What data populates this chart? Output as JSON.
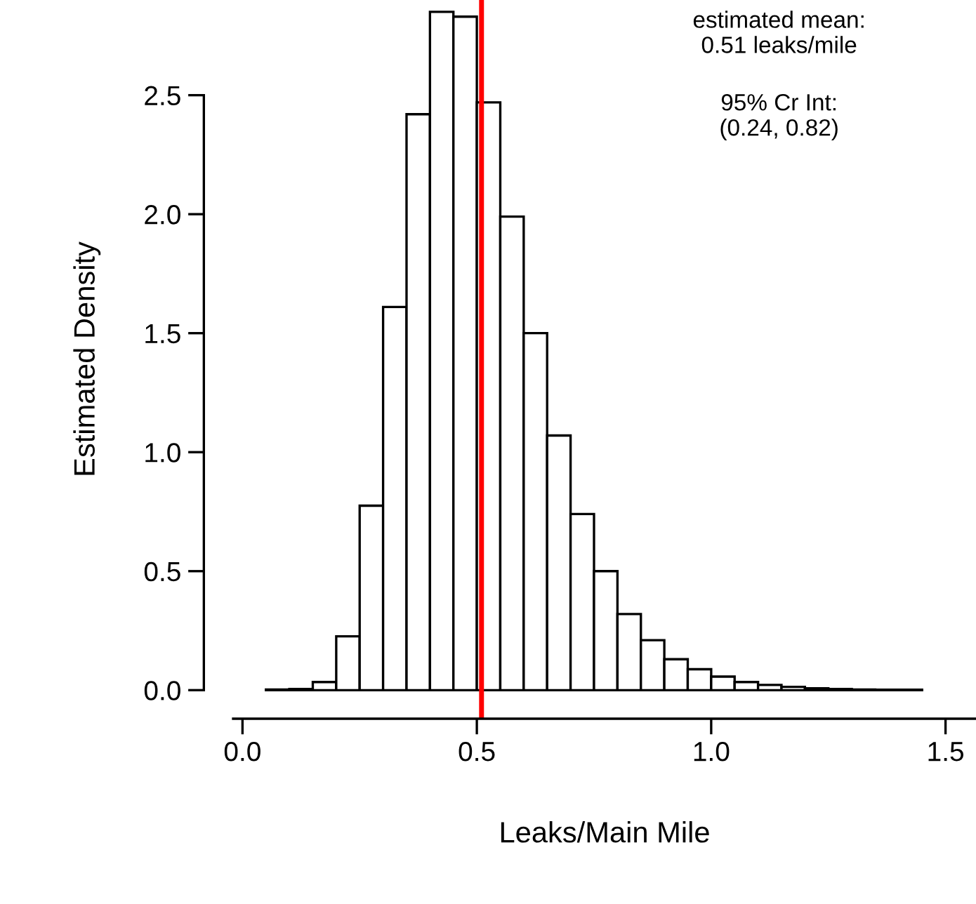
{
  "chart_data": {
    "type": "histogram",
    "xlabel": "Leaks/Main Mile",
    "ylabel": "Estimated Density",
    "bins": [
      0.05,
      0.1,
      0.15,
      0.2,
      0.25,
      0.3,
      0.35,
      0.4,
      0.45,
      0.5,
      0.55,
      0.6,
      0.65,
      0.7,
      0.75,
      0.8,
      0.85,
      0.9,
      0.95,
      1.0,
      1.05,
      1.1,
      1.15,
      1.2,
      1.25,
      1.3,
      1.35,
      1.4,
      1.45,
      1.5,
      1.55
    ],
    "values": [
      0.003,
      0.005,
      0.034,
      0.226,
      0.775,
      1.61,
      2.42,
      2.85,
      2.83,
      2.47,
      1.99,
      1.5,
      1.07,
      0.74,
      0.5,
      0.32,
      0.21,
      0.13,
      0.088,
      0.057,
      0.034,
      0.022,
      0.014,
      0.008,
      0.005,
      0.003,
      0.002,
      0.002,
      null,
      null
    ],
    "color": "#ffffff",
    "xlim": [
      -0.02,
      1.565
    ],
    "ylim": [
      -0.12,
      2.9
    ],
    "xticks": [
      {
        "value": 0,
        "label": "0.0"
      },
      0.5,
      {
        "value": 1,
        "label": "1.0"
      },
      1.5
    ],
    "yticks": [
      {
        "value": 0,
        "label": "0.0"
      },
      0.5,
      {
        "value": 1,
        "label": "1.0"
      },
      1.5,
      {
        "value": 2,
        "label": "2.0"
      },
      2.5
    ],
    "ref_lines": [
      {
        "axis": "x",
        "value": 0.51,
        "color": "#ff0000"
      }
    ],
    "annotations": [
      "estimated mean:\n0.51 leaks/mile",
      "95% Cr Int:\n(0.24, 0.82)"
    ],
    "grid": false,
    "legend": false
  }
}
